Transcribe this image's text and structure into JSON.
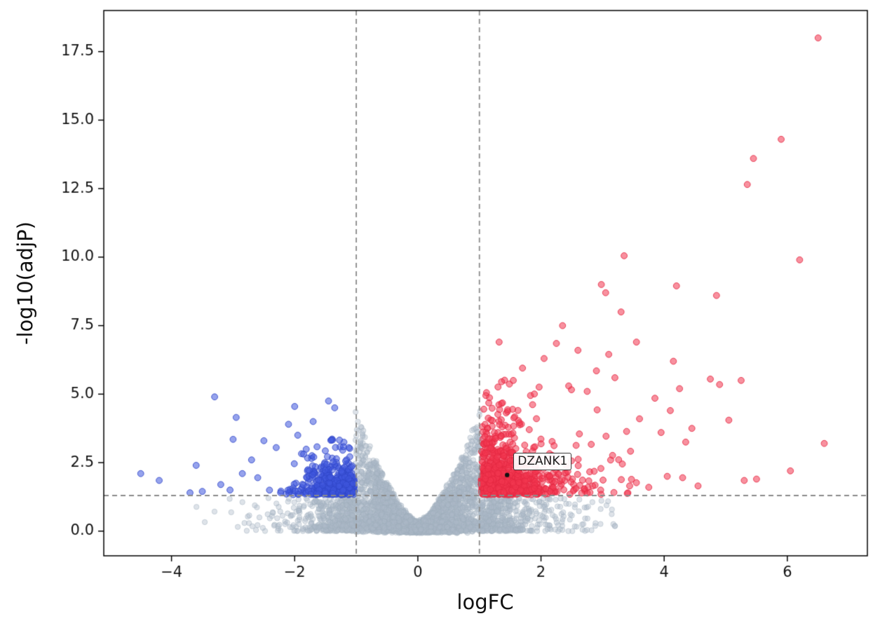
{
  "chart_data": {
    "type": "scatter",
    "title": "",
    "xlabel": "logFC",
    "ylabel": "-log10(adjP)",
    "xlim": [
      -5.1,
      7.3
    ],
    "ylim": [
      -0.9,
      19.0
    ],
    "xticks": [
      -4,
      -2,
      0,
      2,
      4,
      6
    ],
    "xtick_labels": [
      "−4",
      "−2",
      "0",
      "2",
      "4",
      "6"
    ],
    "yticks": [
      0,
      2.5,
      5,
      7.5,
      10,
      12.5,
      15,
      17.5
    ],
    "ytick_labels": [
      "0.0",
      "2.5",
      "5.0",
      "7.5",
      "10.0",
      "12.5",
      "15.0",
      "17.5"
    ],
    "grid": false,
    "legend_position": "none",
    "thresholds": {
      "vlines": [
        -1,
        1
      ],
      "hline": 1.3,
      "color": "#8a8a8a",
      "dash": [
        7,
        5
      ],
      "width": 1.8
    },
    "annotation": {
      "label": "DZANK1",
      "x": 1.45,
      "y": 2.05
    },
    "seed": 42,
    "clouds": [
      {
        "name": "non-significant",
        "kind": "ns",
        "color": "rgba(173,186,199,0.40)",
        "edge": "rgba(158,172,186,0.45)",
        "radius": 3.7,
        "count": 4200,
        "sigma": 0.75,
        "ymax_base": 0.32,
        "ymax_gain": 4.05
      },
      {
        "name": "down-regulated",
        "kind": "down",
        "color": "rgba(64,88,222,0.55)",
        "edge": "rgba(48,70,200,0.85)",
        "radius": 4.4,
        "count": 440,
        "sigma": 0.42,
        "ymean": 0.42
      },
      {
        "name": "up-regulated",
        "kind": "up",
        "color": "rgba(243,55,80,0.55)",
        "edge": "rgba(228,40,66,0.85)",
        "radius": 4.4,
        "count": 880,
        "sigma": 0.5,
        "ymean": 0.78
      }
    ],
    "outlier_points": {
      "up": [
        [
          6.5,
          18.0
        ],
        [
          5.9,
          14.3
        ],
        [
          5.45,
          13.6
        ],
        [
          5.35,
          12.65
        ],
        [
          6.2,
          9.9
        ],
        [
          3.35,
          10.05
        ],
        [
          4.2,
          8.95
        ],
        [
          4.85,
          8.6
        ],
        [
          2.98,
          9.0
        ],
        [
          3.05,
          8.7
        ],
        [
          3.3,
          8.0
        ],
        [
          2.35,
          7.5
        ],
        [
          1.32,
          6.9
        ],
        [
          2.25,
          6.85
        ],
        [
          3.55,
          6.9
        ],
        [
          2.6,
          6.6
        ],
        [
          3.1,
          6.45
        ],
        [
          2.05,
          6.3
        ],
        [
          1.7,
          5.95
        ],
        [
          2.9,
          5.85
        ],
        [
          3.2,
          5.6
        ],
        [
          4.75,
          5.55
        ],
        [
          4.9,
          5.35
        ],
        [
          4.25,
          5.2
        ],
        [
          1.55,
          5.5
        ],
        [
          2.45,
          5.3
        ],
        [
          2.75,
          5.1
        ],
        [
          4.15,
          6.2
        ],
        [
          5.25,
          5.5
        ],
        [
          5.05,
          4.05
        ],
        [
          4.1,
          4.4
        ],
        [
          4.45,
          3.75
        ],
        [
          3.95,
          3.6
        ],
        [
          4.35,
          3.25
        ],
        [
          6.6,
          3.2
        ],
        [
          6.05,
          2.2
        ],
        [
          5.5,
          1.9
        ],
        [
          5.3,
          1.85
        ],
        [
          4.05,
          2.0
        ],
        [
          4.3,
          1.95
        ],
        [
          3.75,
          1.6
        ],
        [
          4.55,
          1.65
        ],
        [
          3.6,
          4.1
        ],
        [
          3.85,
          4.85
        ]
      ],
      "down": [
        [
          -3.3,
          4.9
        ],
        [
          -1.45,
          4.75
        ],
        [
          -1.35,
          4.5
        ],
        [
          -2.0,
          4.55
        ],
        [
          -2.95,
          4.15
        ],
        [
          -1.7,
          4.0
        ],
        [
          -2.1,
          3.9
        ],
        [
          -1.95,
          3.5
        ],
        [
          -2.3,
          3.05
        ],
        [
          -2.5,
          3.3
        ],
        [
          -3.0,
          3.35
        ],
        [
          -2.7,
          2.6
        ],
        [
          -2.85,
          2.1
        ],
        [
          -3.2,
          1.7
        ],
        [
          -3.5,
          1.45
        ],
        [
          -3.7,
          1.4
        ],
        [
          -3.6,
          2.4
        ],
        [
          -4.5,
          2.1
        ],
        [
          -4.2,
          1.85
        ],
        [
          -2.6,
          1.95
        ],
        [
          -3.05,
          1.5
        ]
      ]
    }
  }
}
